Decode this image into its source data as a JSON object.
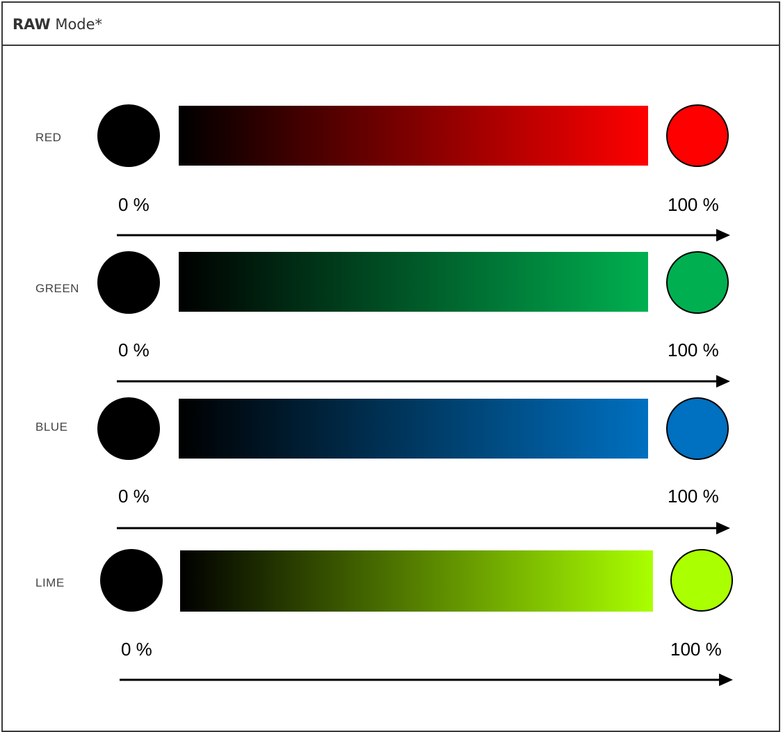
{
  "header": {
    "title_strong": "RAW",
    "title_rest": " Mode*"
  },
  "channels": [
    {
      "label": "RED",
      "start_color": "#000000",
      "end_color": "#ff0000",
      "start_pct": "0 %",
      "end_pct": "100 %"
    },
    {
      "label": "GREEN",
      "start_color": "#000000",
      "end_color": "#00b050",
      "start_pct": "0 %",
      "end_pct": "100 %"
    },
    {
      "label": "BLUE",
      "start_color": "#000000",
      "end_color": "#0070c0",
      "start_pct": "0 %",
      "end_pct": "100 %"
    },
    {
      "label": "LIME",
      "start_color": "#000000",
      "end_color": "#aaff00",
      "start_pct": "0 %",
      "end_pct": "100 %"
    }
  ]
}
